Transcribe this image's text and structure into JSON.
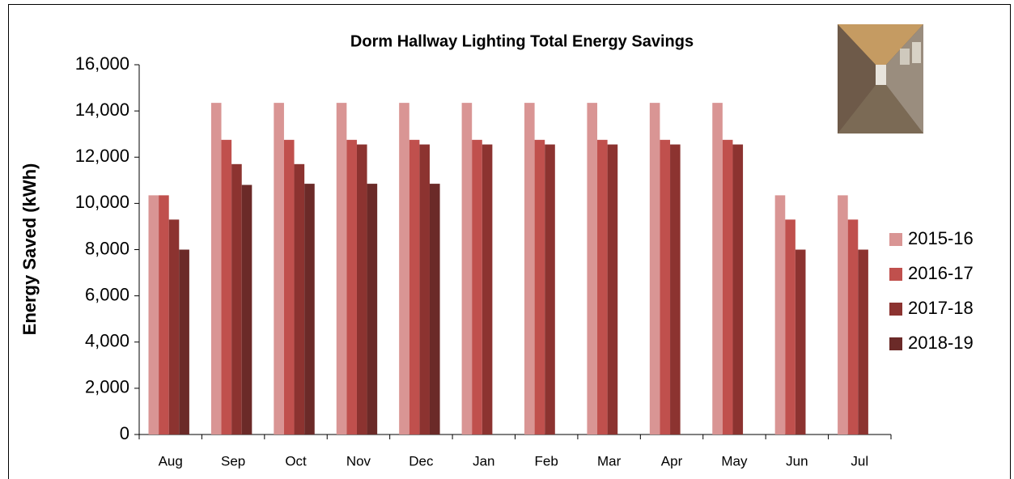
{
  "chart_data": {
    "type": "bar",
    "title": "Dorm Hallway Lighting Total Energy Savings",
    "y_label": "Energy Saved (kWh)",
    "categories": [
      "Aug",
      "Sep",
      "Oct",
      "Nov",
      "Dec",
      "Jan",
      "Feb",
      "Mar",
      "Apr",
      "May",
      "Jun",
      "Jul"
    ],
    "series": [
      {
        "name": "2015-16",
        "color": "#d99594",
        "values": [
          10350,
          14350,
          14350,
          14350,
          14350,
          14350,
          14350,
          14350,
          14350,
          14350,
          10350,
          10350
        ]
      },
      {
        "name": "2016-17",
        "color": "#c0504d",
        "values": [
          10350,
          12750,
          12750,
          12750,
          12750,
          12750,
          12750,
          12750,
          12750,
          12750,
          9300,
          9300
        ]
      },
      {
        "name": "2017-18",
        "color": "#8c3330",
        "values": [
          9300,
          11700,
          11700,
          12550,
          12550,
          12550,
          12550,
          12550,
          12550,
          12550,
          8000,
          8000
        ]
      },
      {
        "name": "2018-19",
        "color": "#6b2a28",
        "values": [
          8000,
          10800,
          10850,
          10850,
          10850,
          null,
          null,
          null,
          null,
          null,
          null,
          null
        ]
      }
    ],
    "ylim": [
      0,
      16000
    ],
    "yticks": [
      0,
      {
        "value": 2000,
        "label": "2,000"
      },
      {
        "value": 4000,
        "label": "4,000"
      },
      {
        "value": 6000,
        "label": "6,000"
      },
      {
        "value": 8000,
        "label": "8,000"
      },
      {
        "value": 10000,
        "label": "10,000"
      },
      {
        "value": 12000,
        "label": "12,000"
      },
      {
        "value": 14000,
        "label": "14,000"
      },
      {
        "value": 16000,
        "label": "16,000"
      }
    ],
    "grid": false,
    "legend": "right"
  }
}
